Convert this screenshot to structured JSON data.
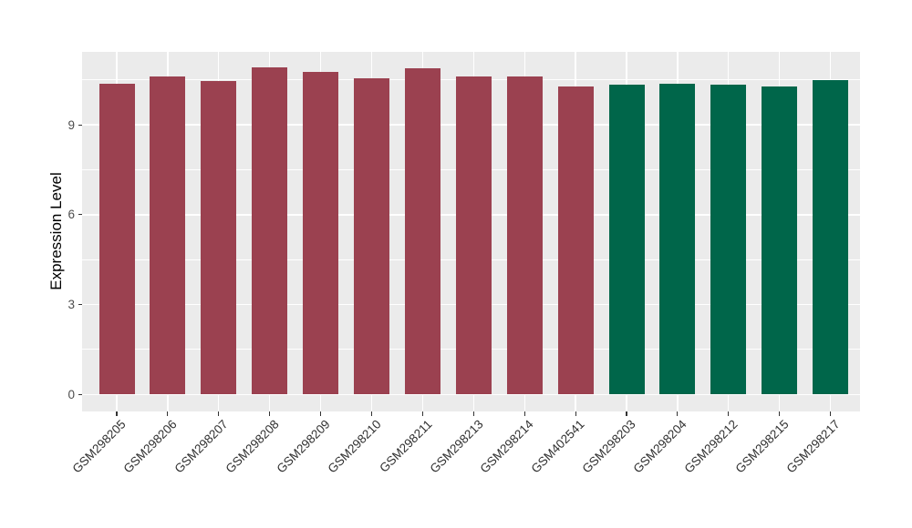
{
  "chart_data": {
    "type": "bar",
    "title": "",
    "xlabel": "",
    "ylabel": "Expression Level",
    "categories": [
      "GSM298205",
      "GSM298206",
      "GSM298207",
      "GSM298208",
      "GSM298209",
      "GSM298210",
      "GSM298211",
      "GSM298213",
      "GSM298214",
      "GSM402541",
      "GSM298203",
      "GSM298204",
      "GSM298212",
      "GSM298215",
      "GSM298217"
    ],
    "values": [
      10.37,
      10.61,
      10.46,
      10.92,
      10.78,
      10.56,
      10.9,
      10.6,
      10.62,
      10.27,
      10.35,
      10.36,
      10.33,
      10.29,
      10.48
    ],
    "bar_colors": [
      "#9B4150",
      "#9B4150",
      "#9B4150",
      "#9B4150",
      "#9B4150",
      "#9B4150",
      "#9B4150",
      "#9B4150",
      "#9B4150",
      "#9B4150",
      "#00664A",
      "#00664A",
      "#00664A",
      "#00664A",
      "#00664A"
    ],
    "palette": {
      "group_red": "#9B4150",
      "group_green": "#00664A"
    },
    "y_ticks": [
      0,
      3,
      6,
      9
    ],
    "y_minor_ticks": [
      1.5,
      4.5,
      7.5,
      10.5
    ],
    "ylim": [
      -0.57,
      11.45
    ],
    "grid": "on",
    "legend_position": "none",
    "panel_bg": "#EBEBEB",
    "grid_color": "#FFFFFF",
    "axis_text_color": "#4D4D4D",
    "axis_title_color": "#000000"
  }
}
